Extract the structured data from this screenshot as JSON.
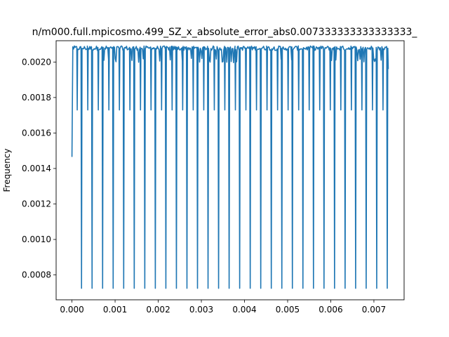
{
  "chart_data": {
    "type": "line",
    "title": "n/m000.full.mpicosmo.499_SZ_x_absolute_error_abs0.007333333333333333_",
    "xlabel": "",
    "ylabel": "Frequency",
    "xlim": [
      -0.000367,
      0.0077
    ],
    "ylim": [
      0.00066,
      0.00212
    ],
    "x_ticks": [
      0.0,
      0.001,
      0.002,
      0.003,
      0.004,
      0.005,
      0.006,
      0.007
    ],
    "x_tick_labels": [
      "0.000",
      "0.001",
      "0.002",
      "0.003",
      "0.004",
      "0.005",
      "0.006",
      "0.007"
    ],
    "y_ticks": [
      0.0008,
      0.001,
      0.0012,
      0.0014,
      0.0016,
      0.0018,
      0.002
    ],
    "y_tick_labels": [
      "0.0008",
      "0.0010",
      "0.0012",
      "0.0014",
      "0.0016",
      "0.0018",
      "0.0020"
    ],
    "grid": false,
    "legend": "none",
    "series": [
      {
        "color": "#1f77b4",
        "x_start": 0.0,
        "x_end": 0.007333,
        "start_value": 0.001465,
        "end_value": 0.00196,
        "baseline": 0.002078,
        "dip_min_value": 0.000725,
        "dip_spacing": 0.0002444,
        "dip_first": 0.000222,
        "dip_count": 30,
        "partial_dips": [
          {
            "x": 0.000122,
            "value": 0.00173
          },
          {
            "x": 0.000367,
            "value": 0.00173
          },
          {
            "x": 0.000611,
            "value": 0.00173
          },
          {
            "x": 0.000856,
            "value": 0.00173
          },
          {
            "x": 0.0011,
            "value": 0.00173
          },
          {
            "x": 0.001344,
            "value": 0.00173
          },
          {
            "x": 0.001589,
            "value": 0.00173
          },
          {
            "x": 0.001833,
            "value": 0.00173
          },
          {
            "x": 0.002078,
            "value": 0.00173
          },
          {
            "x": 0.002322,
            "value": 0.00173
          },
          {
            "x": 0.002567,
            "value": 0.00173
          },
          {
            "x": 0.002811,
            "value": 0.00173
          },
          {
            "x": 0.003056,
            "value": 0.00173
          },
          {
            "x": 0.0033,
            "value": 0.00173
          },
          {
            "x": 0.003544,
            "value": 0.00173
          },
          {
            "x": 0.003789,
            "value": 0.00173
          },
          {
            "x": 0.004033,
            "value": 0.00173
          },
          {
            "x": 0.004278,
            "value": 0.00173
          },
          {
            "x": 0.004522,
            "value": 0.00173
          },
          {
            "x": 0.004767,
            "value": 0.00173
          },
          {
            "x": 0.005011,
            "value": 0.00173
          },
          {
            "x": 0.005256,
            "value": 0.00173
          },
          {
            "x": 0.0055,
            "value": 0.00173
          },
          {
            "x": 0.005744,
            "value": 0.00173
          },
          {
            "x": 0.005989,
            "value": 0.00173
          },
          {
            "x": 0.006233,
            "value": 0.00173
          },
          {
            "x": 0.006478,
            "value": 0.00173
          },
          {
            "x": 0.006722,
            "value": 0.00173
          },
          {
            "x": 0.006967,
            "value": 0.00173
          },
          {
            "x": 0.007211,
            "value": 0.00173
          }
        ]
      }
    ]
  }
}
